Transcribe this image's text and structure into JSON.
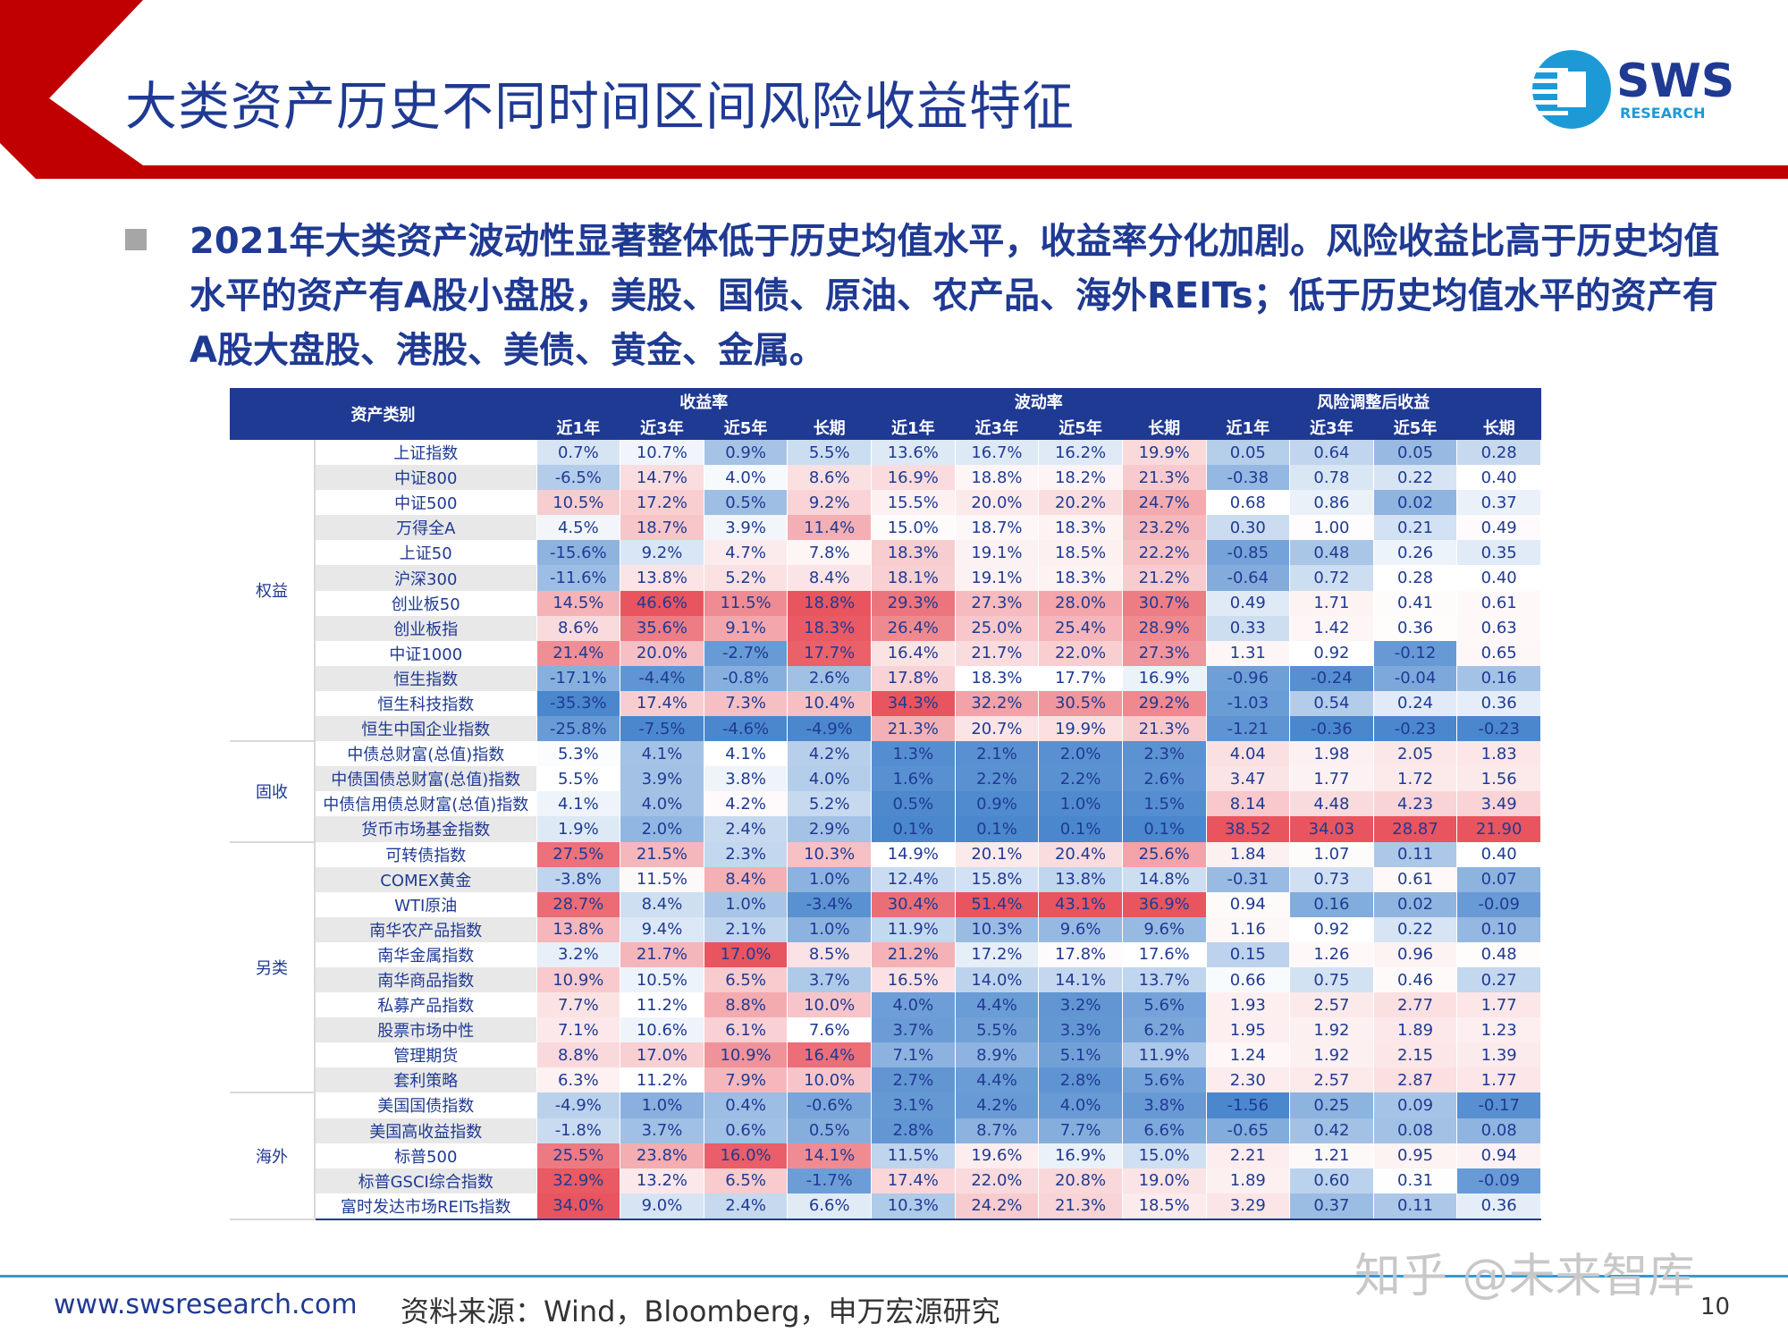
{
  "title": "大类资产历史不同时间区间风险收益特征",
  "logo": {
    "text": "SWS",
    "sub": "RESEARCH"
  },
  "bullet": "2021年大类资产波动性显著整体低于历史均值水平，收益率分化加剧。风险收益比高于历史均值水平的资产有A股小盘股，美股、国债、原油、农产品、海外REITs；低于历史均值水平的资产有A股大盘股、港股、美债、黄金、金属。",
  "colors": {
    "header": "#1f3a93",
    "red_band": "#c00000",
    "positive": "#e8474f",
    "negative": "#3f6fbf"
  },
  "table": {
    "asset_header": "资产类别",
    "groups": [
      "收益率",
      "波动率",
      "风险调整后收益"
    ],
    "periods": [
      "近1年",
      "近3年",
      "近5年",
      "长期"
    ],
    "categories": [
      {
        "name": "权益",
        "rows": 12
      },
      {
        "name": "固收",
        "rows": 4
      },
      {
        "name": "另类",
        "rows": 10
      },
      {
        "name": "海外",
        "rows": 5
      }
    ],
    "rows": [
      [
        "上证指数",
        "0.7%",
        "10.7%",
        "0.9%",
        "5.5%",
        "13.6%",
        "16.7%",
        "16.2%",
        "19.9%",
        "0.05",
        "0.64",
        "0.05",
        "0.28"
      ],
      [
        "中证800",
        "-6.5%",
        "14.7%",
        "4.0%",
        "8.6%",
        "16.9%",
        "18.8%",
        "18.2%",
        "21.3%",
        "-0.38",
        "0.78",
        "0.22",
        "0.40"
      ],
      [
        "中证500",
        "10.5%",
        "17.2%",
        "0.5%",
        "9.2%",
        "15.5%",
        "20.0%",
        "20.2%",
        "24.7%",
        "0.68",
        "0.86",
        "0.02",
        "0.37"
      ],
      [
        "万得全A",
        "4.5%",
        "18.7%",
        "3.9%",
        "11.4%",
        "15.0%",
        "18.7%",
        "18.3%",
        "23.2%",
        "0.30",
        "1.00",
        "0.21",
        "0.49"
      ],
      [
        "上证50",
        "-15.6%",
        "9.2%",
        "4.7%",
        "7.8%",
        "18.3%",
        "19.1%",
        "18.5%",
        "22.2%",
        "-0.85",
        "0.48",
        "0.26",
        "0.35"
      ],
      [
        "沪深300",
        "-11.6%",
        "13.8%",
        "5.2%",
        "8.4%",
        "18.1%",
        "19.1%",
        "18.3%",
        "21.2%",
        "-0.64",
        "0.72",
        "0.28",
        "0.40"
      ],
      [
        "创业板50",
        "14.5%",
        "46.6%",
        "11.5%",
        "18.8%",
        "29.3%",
        "27.3%",
        "28.0%",
        "30.7%",
        "0.49",
        "1.71",
        "0.41",
        "0.61"
      ],
      [
        "创业板指",
        "8.6%",
        "35.6%",
        "9.1%",
        "18.3%",
        "26.4%",
        "25.0%",
        "25.4%",
        "28.9%",
        "0.33",
        "1.42",
        "0.36",
        "0.63"
      ],
      [
        "中证1000",
        "21.4%",
        "20.0%",
        "-2.7%",
        "17.7%",
        "16.4%",
        "21.7%",
        "22.0%",
        "27.3%",
        "1.31",
        "0.92",
        "-0.12",
        "0.65"
      ],
      [
        "恒生指数",
        "-17.1%",
        "-4.4%",
        "-0.8%",
        "2.6%",
        "17.8%",
        "18.3%",
        "17.7%",
        "16.9%",
        "-0.96",
        "-0.24",
        "-0.04",
        "0.16"
      ],
      [
        "恒生科技指数",
        "-35.3%",
        "17.4%",
        "7.3%",
        "10.4%",
        "34.3%",
        "32.2%",
        "30.5%",
        "29.2%",
        "-1.03",
        "0.54",
        "0.24",
        "0.36"
      ],
      [
        "恒生中国企业指数",
        "-25.8%",
        "-7.5%",
        "-4.6%",
        "-4.9%",
        "21.3%",
        "20.7%",
        "19.9%",
        "21.3%",
        "-1.21",
        "-0.36",
        "-0.23",
        "-0.23"
      ],
      [
        "中债总财富(总值)指数",
        "5.3%",
        "4.1%",
        "4.1%",
        "4.2%",
        "1.3%",
        "2.1%",
        "2.0%",
        "2.3%",
        "4.04",
        "1.98",
        "2.05",
        "1.83"
      ],
      [
        "中债国债总财富(总值)指数",
        "5.5%",
        "3.9%",
        "3.8%",
        "4.0%",
        "1.6%",
        "2.2%",
        "2.2%",
        "2.6%",
        "3.47",
        "1.77",
        "1.72",
        "1.56"
      ],
      [
        "中债信用债总财富(总值)指数",
        "4.1%",
        "4.0%",
        "4.2%",
        "5.2%",
        "0.5%",
        "0.9%",
        "1.0%",
        "1.5%",
        "8.14",
        "4.48",
        "4.23",
        "3.49"
      ],
      [
        "货币市场基金指数",
        "1.9%",
        "2.0%",
        "2.4%",
        "2.9%",
        "0.1%",
        "0.1%",
        "0.1%",
        "0.1%",
        "38.52",
        "34.03",
        "28.87",
        "21.90"
      ],
      [
        "可转债指数",
        "27.5%",
        "21.5%",
        "2.3%",
        "10.3%",
        "14.9%",
        "20.1%",
        "20.4%",
        "25.6%",
        "1.84",
        "1.07",
        "0.11",
        "0.40"
      ],
      [
        "COMEX黄金",
        "-3.8%",
        "11.5%",
        "8.4%",
        "1.0%",
        "12.4%",
        "15.8%",
        "13.8%",
        "14.8%",
        "-0.31",
        "0.73",
        "0.61",
        "0.07"
      ],
      [
        "WTI原油",
        "28.7%",
        "8.4%",
        "1.0%",
        "-3.4%",
        "30.4%",
        "51.4%",
        "43.1%",
        "36.9%",
        "0.94",
        "0.16",
        "0.02",
        "-0.09"
      ],
      [
        "南华农产品指数",
        "13.8%",
        "9.4%",
        "2.1%",
        "1.0%",
        "11.9%",
        "10.3%",
        "9.6%",
        "9.6%",
        "1.16",
        "0.92",
        "0.22",
        "0.10"
      ],
      [
        "南华金属指数",
        "3.2%",
        "21.7%",
        "17.0%",
        "8.5%",
        "21.2%",
        "17.2%",
        "17.8%",
        "17.6%",
        "0.15",
        "1.26",
        "0.96",
        "0.48"
      ],
      [
        "南华商品指数",
        "10.9%",
        "10.5%",
        "6.5%",
        "3.7%",
        "16.5%",
        "14.0%",
        "14.1%",
        "13.7%",
        "0.66",
        "0.75",
        "0.46",
        "0.27"
      ],
      [
        "私募产品指数",
        "7.7%",
        "11.2%",
        "8.8%",
        "10.0%",
        "4.0%",
        "4.4%",
        "3.2%",
        "5.6%",
        "1.93",
        "2.57",
        "2.77",
        "1.77"
      ],
      [
        "股票市场中性",
        "7.1%",
        "10.6%",
        "6.1%",
        "7.6%",
        "3.7%",
        "5.5%",
        "3.3%",
        "6.2%",
        "1.95",
        "1.92",
        "1.89",
        "1.23"
      ],
      [
        "管理期货",
        "8.8%",
        "17.0%",
        "10.9%",
        "16.4%",
        "7.1%",
        "8.9%",
        "5.1%",
        "11.9%",
        "1.24",
        "1.92",
        "2.15",
        "1.39"
      ],
      [
        "套利策略",
        "6.3%",
        "11.2%",
        "7.9%",
        "10.0%",
        "2.7%",
        "4.4%",
        "2.8%",
        "5.6%",
        "2.30",
        "2.57",
        "2.87",
        "1.77"
      ],
      [
        "美国国债指数",
        "-4.9%",
        "1.0%",
        "0.4%",
        "-0.6%",
        "3.1%",
        "4.2%",
        "4.0%",
        "3.8%",
        "-1.56",
        "0.25",
        "0.09",
        "-0.17"
      ],
      [
        "美国高收益指数",
        "-1.8%",
        "3.7%",
        "0.6%",
        "0.5%",
        "2.8%",
        "8.7%",
        "7.7%",
        "6.6%",
        "-0.65",
        "0.42",
        "0.08",
        "0.08"
      ],
      [
        "标普500",
        "25.5%",
        "23.8%",
        "16.0%",
        "14.1%",
        "11.5%",
        "19.6%",
        "16.9%",
        "15.0%",
        "2.21",
        "1.21",
        "0.95",
        "0.94"
      ],
      [
        "标普GSCI综合指数",
        "32.9%",
        "13.2%",
        "6.5%",
        "-1.7%",
        "17.4%",
        "22.0%",
        "20.8%",
        "19.0%",
        "1.89",
        "0.60",
        "0.31",
        "-0.09"
      ],
      [
        "富时发达市场REITs指数",
        "34.0%",
        "9.0%",
        "2.4%",
        "6.6%",
        "10.3%",
        "24.2%",
        "21.3%",
        "18.5%",
        "3.29",
        "0.37",
        "0.11",
        "0.36"
      ]
    ]
  },
  "footer": {
    "website": "www.swsresearch.com",
    "source": "资料来源：Wind，Bloomberg，申万宏源研究",
    "watermark": "知乎 @未来智库",
    "page": "10"
  }
}
